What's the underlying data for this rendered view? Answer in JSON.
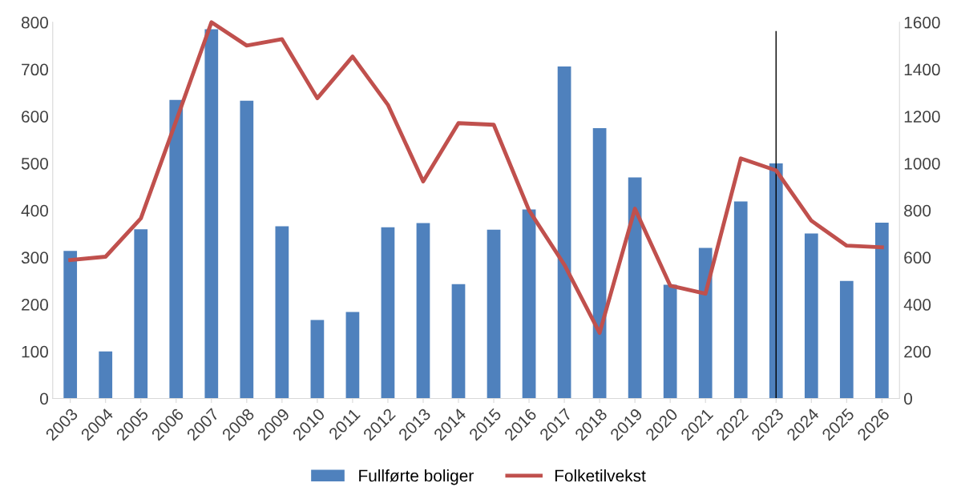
{
  "chart_data": {
    "type": "bar",
    "categories": [
      "2003",
      "2004",
      "2005",
      "2006",
      "2007",
      "2008",
      "2009",
      "2010",
      "2011",
      "2012",
      "2013",
      "2014",
      "2015",
      "2016",
      "2017",
      "2018",
      "2019",
      "2020",
      "2021",
      "2022",
      "2023",
      "2024",
      "2025",
      "2026"
    ],
    "series": [
      {
        "name": "Fullførte boliger",
        "color": "#4f81bd",
        "values": [
          314,
          100,
          360,
          635,
          785,
          633,
          366,
          167,
          184,
          364,
          373,
          243,
          359,
          402,
          706,
          575,
          470,
          242,
          320,
          419,
          500,
          351,
          250,
          374
        ]
      },
      {
        "name": "Folketilvekst",
        "type": "line",
        "axis": "y2",
        "color": "#c0504d",
        "values": [
          589,
          603,
          766,
          1181,
          1600,
          1501,
          1528,
          1277,
          1454,
          1249,
          923,
          1171,
          1164,
          800,
          569,
          279,
          807,
          480,
          446,
          1021,
          970,
          756,
          650,
          643
        ]
      }
    ],
    "ylim": [
      0,
      800
    ],
    "yticks": [
      0,
      100,
      200,
      300,
      400,
      500,
      600,
      700,
      800
    ],
    "y2lim": [
      0,
      1600
    ],
    "y2ticks": [
      0,
      200,
      400,
      600,
      800,
      1000,
      1200,
      1400,
      1600
    ],
    "ref_lines": [
      {
        "axis": "x",
        "value": "2023",
        "color": "#000000"
      }
    ],
    "grid": false,
    "legend": "bottom",
    "marker": "none",
    "line_style": "solid"
  }
}
